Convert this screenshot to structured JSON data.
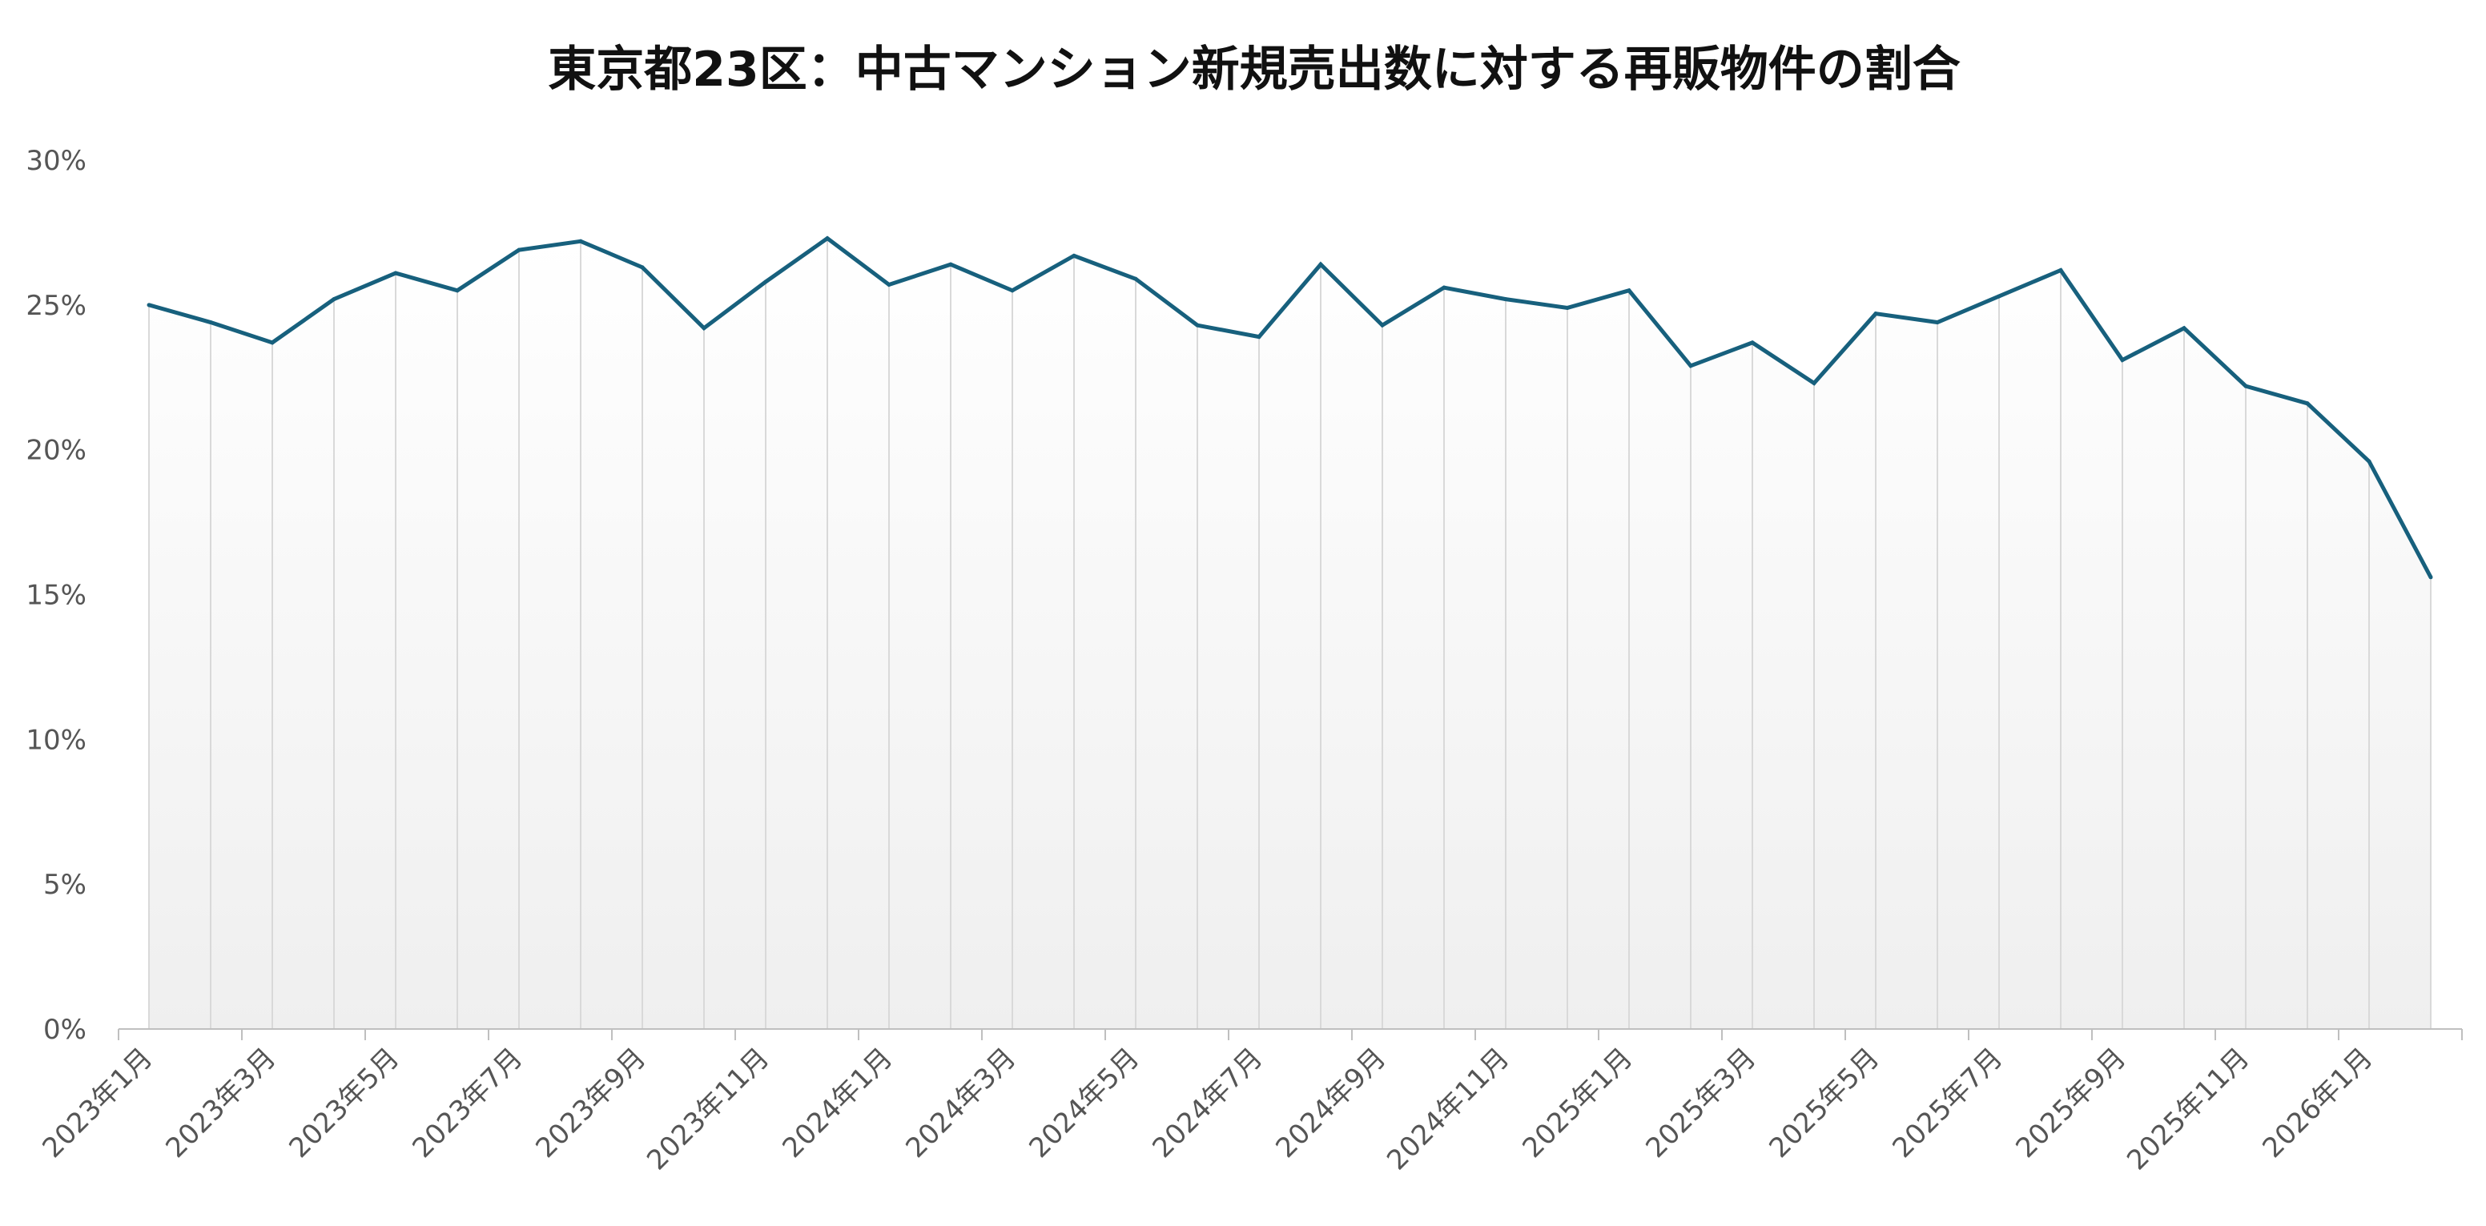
{
  "chart_data": {
    "type": "area",
    "title": "東京都23区：中古マンション新規売出数に対する再販物件の割合",
    "xlabel": "",
    "ylabel": "",
    "ylim": [
      0,
      30
    ],
    "yticks": [
      "30%",
      "25%",
      "20%",
      "15%",
      "10%",
      "5%",
      "0%"
    ],
    "grid": "vertical",
    "legend": "none",
    "x": [
      "2023年1月",
      "2023年2月",
      "2023年3月",
      "2023年4月",
      "2023年5月",
      "2023年6月",
      "2023年7月",
      "2023年8月",
      "2023年9月",
      "2023年10月",
      "2023年11月",
      "2023年12月",
      "2024年1月",
      "2024年2月",
      "2024年3月",
      "2024年4月",
      "2024年5月",
      "2024年6月",
      "2024年7月",
      "2024年8月",
      "2024年9月",
      "2024年10月",
      "2024年11月",
      "2024年12月",
      "2025年1月",
      "2025年2月",
      "2025年3月",
      "2025年4月",
      "2025年5月",
      "2025年6月",
      "2025年7月",
      "2025年8月",
      "2025年9月",
      "2025年10月",
      "2025年11月",
      "2025年12月",
      "2026年1月",
      "2026年2月"
    ],
    "xtick_labels": [
      "2023年1月",
      "2023年3月",
      "2023年5月",
      "2023年7月",
      "2023年9月",
      "2023年11月",
      "2024年1月",
      "2024年3月",
      "2024年5月",
      "2024年7月",
      "2024年9月",
      "2024年11月",
      "2025年1月",
      "2025年3月",
      "2025年5月",
      "2025年7月",
      "2025年9月",
      "2025年11月",
      "2026年1月"
    ],
    "series": [
      {
        "values": [
          25.0,
          24.4,
          23.7,
          25.2,
          26.1,
          25.5,
          26.9,
          27.2,
          26.3,
          24.2,
          25.8,
          27.3,
          25.7,
          26.4,
          25.5,
          26.7,
          25.9,
          24.3,
          23.9,
          26.4,
          24.3,
          25.6,
          25.2,
          24.9,
          25.5,
          22.9,
          23.7,
          22.3,
          24.7,
          24.4,
          25.3,
          26.2,
          23.1,
          24.2,
          22.2,
          21.6,
          19.6,
          15.6
        ]
      }
    ],
    "colors": {
      "line": "#17607d",
      "gridline": "#d9d9d9",
      "axis": "#bfbfbf",
      "fill_top": "#ffffff",
      "fill_bottom": "#efefef"
    }
  }
}
